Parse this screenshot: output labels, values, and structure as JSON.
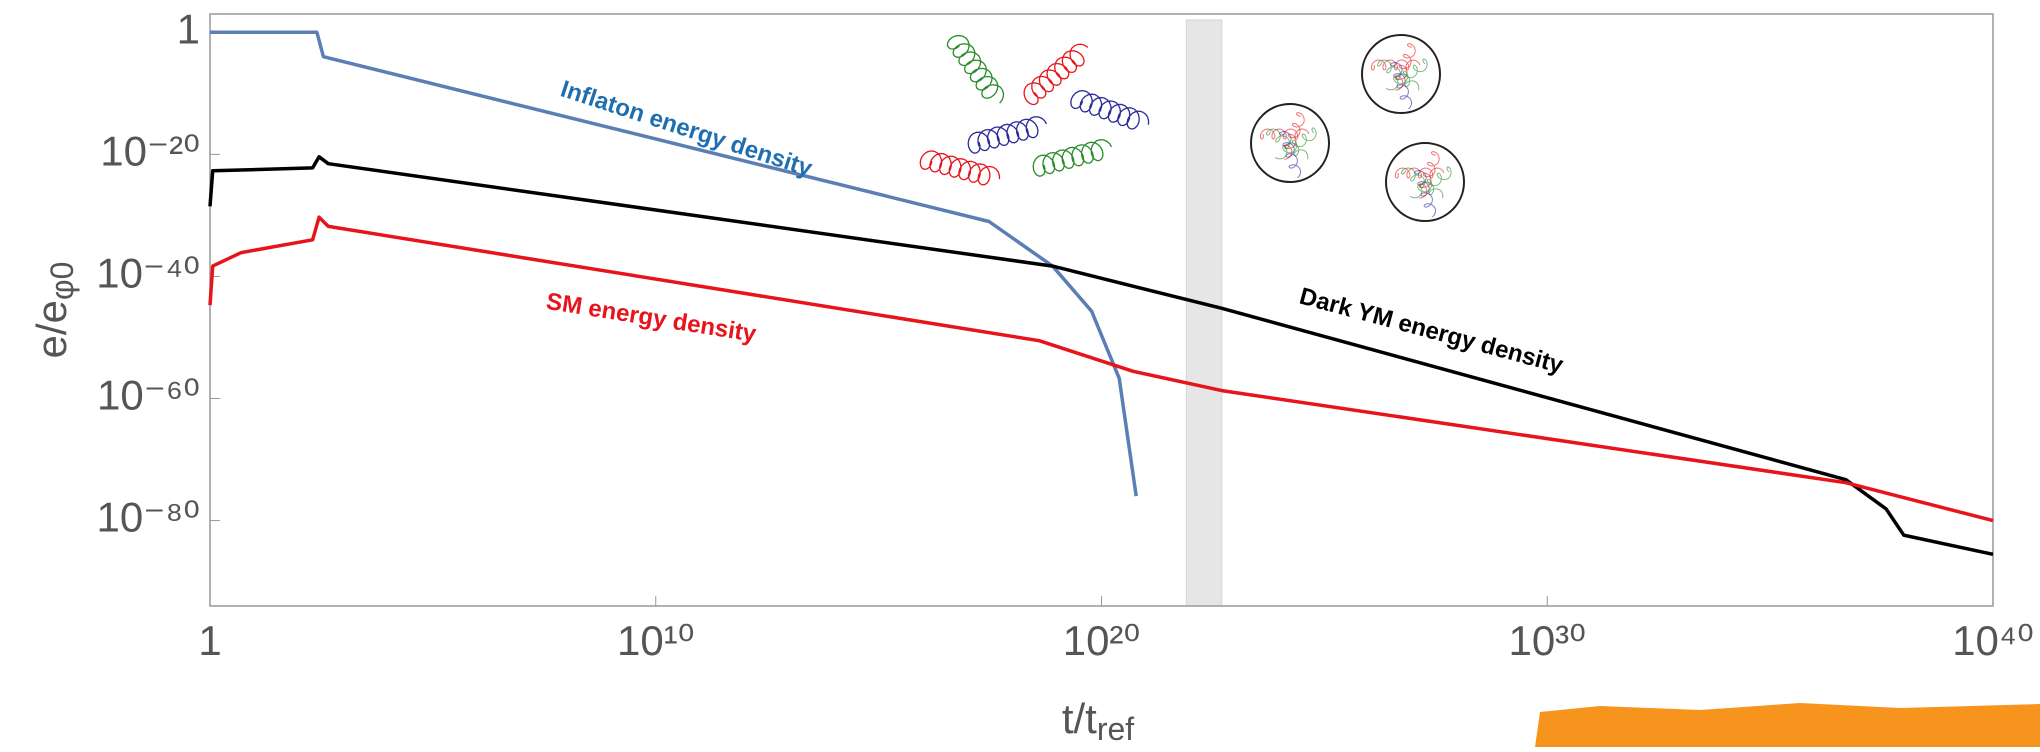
{
  "chart_data": {
    "type": "line",
    "xlabel": {
      "text": "t/t",
      "sub": "ref"
    },
    "ylabel": {
      "text": "e/e",
      "sub": "φ0"
    },
    "xscale": "log",
    "yscale": "log",
    "xlim": [
      1,
      1e+40
    ],
    "ylim": [
      1e-94,
      1000.0
    ],
    "xticks": [
      1,
      {
        "value": 10000000000.0,
        "label": "10¹⁰"
      },
      {
        "value": 1e+20,
        "label": "10²⁰"
      },
      {
        "value": 1e+30,
        "label": "10³⁰"
      },
      {
        "value": 1e+40,
        "label": "10⁴⁰"
      }
    ],
    "yticks": [
      1,
      {
        "value": 1e-20,
        "label": "10⁻²⁰"
      },
      {
        "value": 1e-40,
        "label": "10⁻⁴⁰"
      },
      {
        "value": 1e-60,
        "label": "10⁻⁶⁰"
      },
      {
        "value": 1e-80,
        "label": "10⁻⁸⁰"
      }
    ],
    "shaded_xrange": [
      8e+21,
      5e+22
    ],
    "series": [
      {
        "name": "Inflaton energy density",
        "color": "#5b7fb5",
        "label_color": "#1f6fb0",
        "x": [
          1,
          250.0,
          350.0,
          3e+17,
          8e+18,
          6e+19,
          2.5e+20,
          6e+20
        ],
        "values": [
          1,
          1,
          0.0001,
          1e-31,
          5e-39,
          2e-46,
          2e-57,
          1e-76
        ]
      },
      {
        "name": "Dark YM energy density",
        "color": "#000000",
        "label_color": "#000000",
        "x": [
          1,
          1.15,
          200.0,
          280.0,
          450.0,
          8e+18,
          5e+22,
          5e+36,
          4e+37,
          1e+38,
          1e+40
        ],
        "values": [
          3e-29,
          2e-23,
          6e-23,
          4e-21,
          3e-22,
          5e-39,
          6e-46,
          5e-74,
          8e-79,
          4e-83,
          3e-86
        ]
      },
      {
        "name": "SM energy density",
        "color": "#e8141b",
        "label_color": "#e8141b",
        "x": [
          1,
          1.15,
          5,
          200.0,
          280.0,
          450.0,
          4e+18,
          5e+20,
          5e+22,
          5e+36,
          1e+40
        ],
        "values": [
          2e-45,
          5e-39,
          8e-37,
          1e-34,
          5e-31,
          1.6e-32,
          3e-51,
          3e-56,
          2e-59,
          1.6e-74,
          1e-80
        ]
      }
    ]
  }
}
